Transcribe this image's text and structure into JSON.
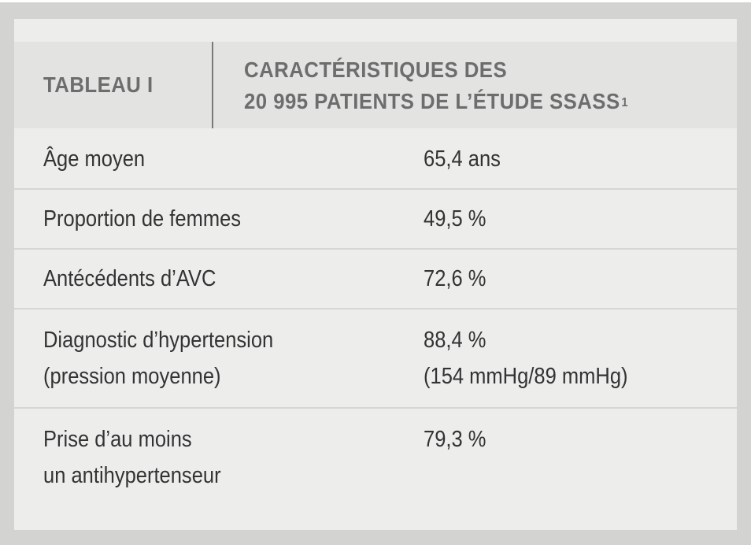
{
  "table": {
    "label": "TABLEAU I",
    "title_line1": "CARACTÉRISTIQUES DES",
    "title_line2": "20 995 PATIENTS DE L’ÉTUDE SSASS",
    "title_footnote": "1",
    "rows": [
      {
        "label": [
          "Âge moyen"
        ],
        "value": [
          "65,4 ans"
        ]
      },
      {
        "label": [
          "Proportion de femmes"
        ],
        "value": [
          "49,5 %"
        ]
      },
      {
        "label": [
          "Antécédents d’AVC"
        ],
        "value": [
          "72,6 %"
        ]
      },
      {
        "label": [
          "Diagnostic d’hypertension",
          "(pression moyenne)"
        ],
        "value": [
          "88,4 %",
          "(154 mmHg/89 mmHg)"
        ]
      },
      {
        "label": [
          "Prise d’au moins",
          "un antihypertenseur"
        ],
        "value": [
          "79,3 %"
        ]
      }
    ]
  }
}
